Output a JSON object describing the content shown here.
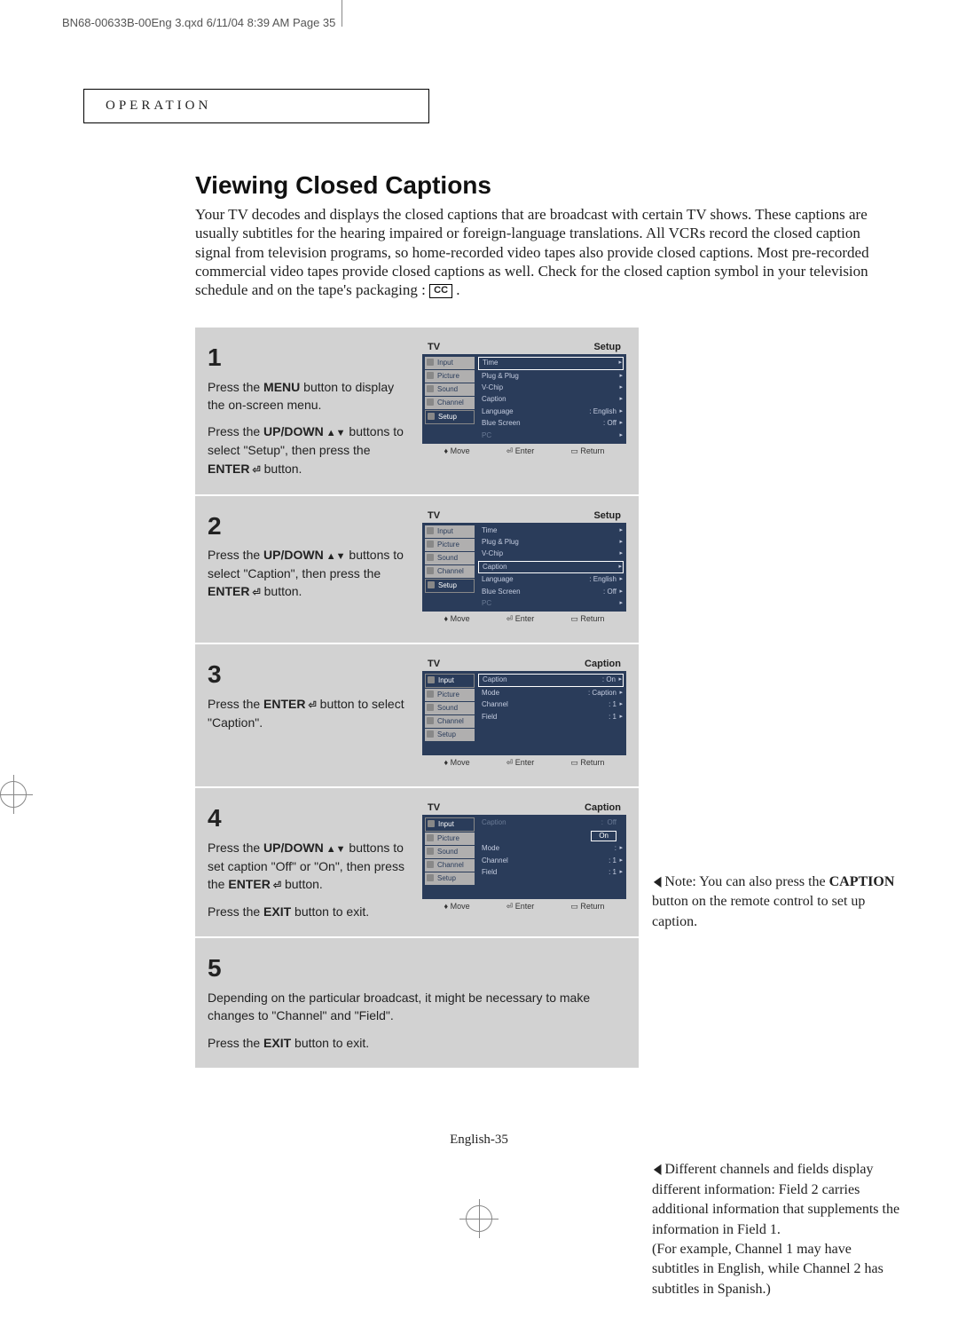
{
  "doc_header": "BN68-00633B-00Eng 3.qxd   6/11/04 8:39 AM   Page 35",
  "section_label": "OPERATION",
  "title": "Viewing Closed Captions",
  "intro": "Your TV decodes and displays the closed captions that are broadcast with certain TV shows. These captions are usually subtitles for the hearing impaired or foreign-language translations. All VCRs record the closed caption signal from television programs, so home-recorded video tapes also provide closed captions. Most pre-recorded commercial video tapes provide closed captions as well. Check for the closed caption symbol in your television schedule and on the tape's packaging : ",
  "cc_symbol": "CC",
  "steps": {
    "s1": {
      "num": "1",
      "text_a": "Press the ",
      "bold_a": "MENU",
      "text_b": " button to display the on-screen menu.",
      "text_c": "Press the ",
      "bold_c": "UP/DOWN",
      "text_d": " buttons to select \"Setup\", then press the ",
      "bold_d": "ENTER",
      "text_e": " button.",
      "osd_title_l": "TV",
      "osd_title_r": "Setup",
      "tabs": [
        "Input",
        "Picture",
        "Sound",
        "Channel",
        "Setup"
      ],
      "rows": [
        {
          "l": "Time",
          "r": "",
          "hl": true
        },
        {
          "l": "Plug & Plug",
          "r": ""
        },
        {
          "l": "V-Chip",
          "r": ""
        },
        {
          "l": "Caption",
          "r": ""
        },
        {
          "l": "Language",
          "r": ":   English"
        },
        {
          "l": "Blue Screen",
          "r": ":   Off"
        },
        {
          "l": "PC",
          "r": "",
          "dim": true
        }
      ]
    },
    "s2": {
      "num": "2",
      "text_a": "Press the ",
      "bold_a": "UP/DOWN",
      "text_b": " buttons to select \"Caption\", then press the ",
      "bold_b": "ENTER",
      "text_c": " button.",
      "osd_title_l": "TV",
      "osd_title_r": "Setup",
      "tabs": [
        "Input",
        "Picture",
        "Sound",
        "Channel",
        "Setup"
      ],
      "rows": [
        {
          "l": "Time",
          "r": ""
        },
        {
          "l": "Plug & Plug",
          "r": ""
        },
        {
          "l": "V-Chip",
          "r": ""
        },
        {
          "l": "Caption",
          "r": "",
          "hl": true
        },
        {
          "l": "Language",
          "r": ":   English"
        },
        {
          "l": "Blue Screen",
          "r": ":   Off"
        },
        {
          "l": "PC",
          "r": "",
          "dim": true
        }
      ]
    },
    "s3": {
      "num": "3",
      "text_a": "Press the ",
      "bold_a": "ENTER",
      "text_b": " button to select \"Caption\".",
      "osd_title_l": "TV",
      "osd_title_r": "Caption",
      "tabs": [
        "Input",
        "Picture",
        "Sound",
        "Channel",
        "Setup"
      ],
      "rows": [
        {
          "l": "Caption",
          "r": ":   On",
          "hl": true
        },
        {
          "l": "Mode",
          "r": ":   Caption"
        },
        {
          "l": "Channel",
          "r": ":   1"
        },
        {
          "l": "Field",
          "r": ":   1"
        }
      ]
    },
    "s4": {
      "num": "4",
      "text_a": "Press the ",
      "bold_a": "UP/DOWN",
      "text_b": " buttons to set caption \"Off\" or \"On\", then press the ",
      "bold_b": "ENTER",
      "text_c": " button.",
      "text_d": "Press the ",
      "bold_d": "EXIT",
      "text_e": " button to exit.",
      "osd_title_l": "TV",
      "osd_title_r": "Caption",
      "tabs": [
        "Input",
        "Picture",
        "Sound",
        "Channel",
        "Setup"
      ],
      "rows": [
        {
          "l": "Caption",
          "r": "Off",
          "dim": true,
          "val_on": "On"
        },
        {
          "l": "Mode",
          "r": ":"
        },
        {
          "l": "Channel",
          "r": ":   1"
        },
        {
          "l": "Field",
          "r": ":   1"
        }
      ]
    },
    "s5": {
      "num": "5",
      "text_a": "Depending on the particular broadcast, it might be necessary  to make changes to \"Channel\" and \"Field\".",
      "text_b": "Press the ",
      "bold_b": "EXIT",
      "text_c": " button to exit."
    }
  },
  "osd_footer": {
    "move": "Move",
    "enter": "Enter",
    "ret": "Return"
  },
  "note3_a": "Note: You can also press the ",
  "note3_bold": "CAPTION",
  "note3_b": " button on the remote control to set up caption.",
  "note5": "Different channels and fields display different information: Field 2 carries additional information that supplements the information in Field 1.\n(For example, Channel 1 may have subtitles in English, while Channel 2 has subtitles in Spanish.)",
  "footer": "English-35"
}
